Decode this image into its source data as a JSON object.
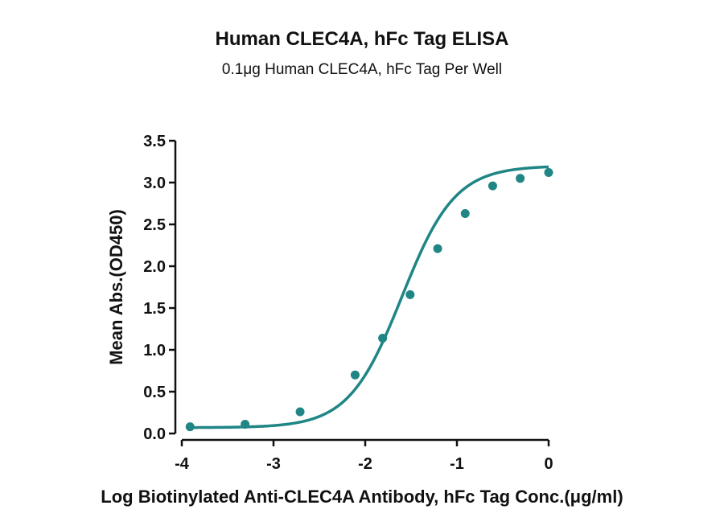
{
  "page": {
    "title": "Human CLEC4A, hFc Tag ELISA",
    "subtitle": "0.1μg Human CLEC4A, hFc Tag Per Well"
  },
  "chart_data": {
    "type": "scatter",
    "title": "Human CLEC4A, hFc Tag ELISA",
    "subtitle": "0.1μg Human CLEC4A, hFc Tag Per Well",
    "xlabel": "Log Biotinylated Anti-CLEC4A Antibody, hFc Tag Conc.(μg/ml)",
    "ylabel": "Mean Abs.(OD450)",
    "xlim": [
      -4,
      0
    ],
    "ylim": [
      0,
      3.5
    ],
    "x_ticks": [
      -4,
      -3,
      -2,
      -1,
      0
    ],
    "x_tick_labels": [
      "-4",
      "-3",
      "-2",
      "-1",
      "0"
    ],
    "y_ticks": [
      0,
      0.5,
      1,
      1.5,
      2,
      2.5,
      3,
      3.5
    ],
    "y_tick_labels": [
      "0.0",
      "0.5",
      "1.0",
      "1.5",
      "2.0",
      "2.5",
      "3.0",
      "3.5"
    ],
    "grid": false,
    "series": [
      {
        "x": [
          -3.91,
          -3.31,
          -2.71,
          -2.11,
          -1.81,
          -1.51,
          -1.21,
          -0.91,
          -0.61,
          -0.31,
          0.0
        ],
        "y": [
          0.08,
          0.11,
          0.26,
          0.7,
          1.14,
          1.66,
          2.21,
          2.63,
          2.96,
          3.05,
          3.12
        ],
        "color": "#1f8585",
        "marker": "circle",
        "fit": "4PL sigmoidal curve"
      }
    ],
    "fit_params": {
      "bottom": 0.07,
      "top": 3.2,
      "log_ec50": -1.6,
      "hill_slope": 1.5
    }
  }
}
